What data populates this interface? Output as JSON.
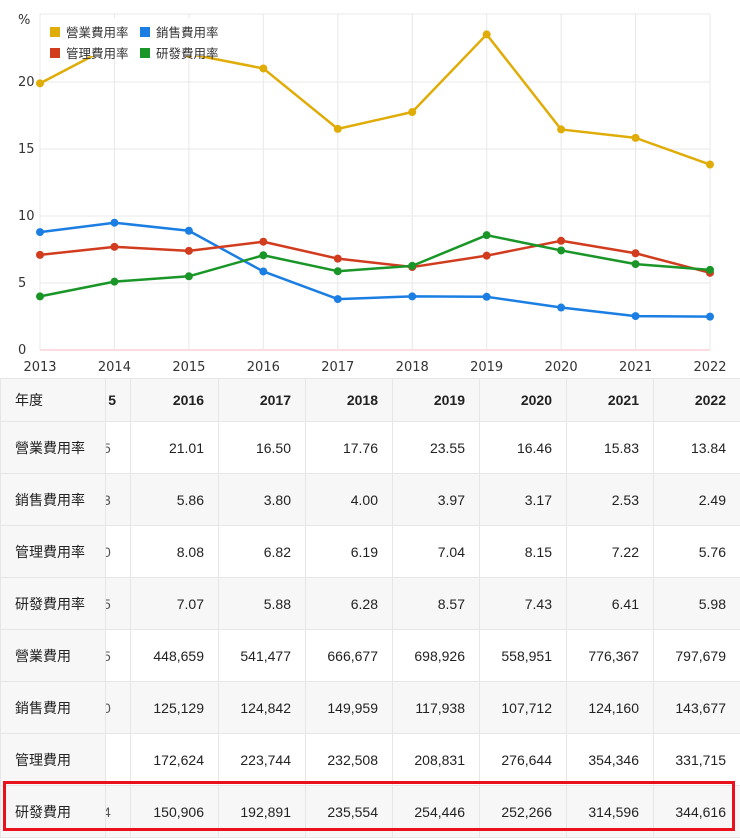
{
  "chart_data": {
    "type": "line",
    "ylabel": "%",
    "x": [
      "2013",
      "2014",
      "2015",
      "2016",
      "2017",
      "2018",
      "2019",
      "2020",
      "2021",
      "2022"
    ],
    "ylim": [
      0,
      25
    ],
    "yticks": [
      "0",
      "5",
      "10",
      "15",
      "20"
    ],
    "legend_position": "top-left",
    "series": [
      {
        "name": "營業費用率",
        "color": "#e0ac08",
        "values": [
          19.9,
          22.8,
          22.1,
          21.01,
          16.5,
          17.76,
          23.55,
          16.46,
          15.83,
          13.84
        ]
      },
      {
        "name": "銷售費用率",
        "color": "#1b7ee3",
        "values": [
          8.8,
          9.5,
          8.9,
          5.86,
          3.8,
          4.0,
          3.97,
          3.17,
          2.53,
          2.49
        ]
      },
      {
        "name": "管理費用率",
        "color": "#d23c1e",
        "values": [
          7.1,
          7.7,
          7.4,
          8.08,
          6.82,
          6.19,
          7.04,
          8.15,
          7.22,
          5.76
        ]
      },
      {
        "name": "研發費用率",
        "color": "#1a9628",
        "values": [
          4.0,
          5.1,
          5.5,
          7.07,
          5.88,
          6.28,
          8.57,
          7.43,
          6.41,
          5.98
        ]
      }
    ]
  },
  "table": {
    "corner_label": "年度",
    "partial_header": "5",
    "years": [
      "2016",
      "2017",
      "2018",
      "2019",
      "2020",
      "2021",
      "2022"
    ],
    "rows": [
      {
        "label": "營業費用率",
        "partial": "5",
        "values": [
          "21.01",
          "16.50",
          "17.76",
          "23.55",
          "16.46",
          "15.83",
          "13.84"
        ]
      },
      {
        "label": "銷售費用率",
        "partial": "3",
        "values": [
          "5.86",
          "3.80",
          "4.00",
          "3.97",
          "3.17",
          "2.53",
          "2.49"
        ]
      },
      {
        "label": "管理費用率",
        "partial": "0",
        "values": [
          "8.08",
          "6.82",
          "6.19",
          "7.04",
          "8.15",
          "7.22",
          "5.76"
        ]
      },
      {
        "label": "研發費用率",
        "partial": "5",
        "values": [
          "7.07",
          "5.88",
          "6.28",
          "8.57",
          "7.43",
          "6.41",
          "5.98"
        ]
      },
      {
        "label": "營業費用",
        "partial": "5",
        "values": [
          "448,659",
          "541,477",
          "666,677",
          "698,926",
          "558,951",
          "776,367",
          "797,679"
        ]
      },
      {
        "label": "銷售費用",
        "partial": "0",
        "values": [
          "125,129",
          "124,842",
          "149,959",
          "117,938",
          "107,712",
          "124,160",
          "143,677"
        ]
      },
      {
        "label": "管理費用",
        "partial": "",
        "values": [
          "172,624",
          "223,744",
          "232,508",
          "208,831",
          "276,644",
          "354,346",
          "331,715"
        ]
      },
      {
        "label": "研發費用",
        "partial": "4",
        "values": [
          "150,906",
          "192,891",
          "235,554",
          "254,446",
          "252,266",
          "314,596",
          "344,616"
        ]
      }
    ]
  }
}
